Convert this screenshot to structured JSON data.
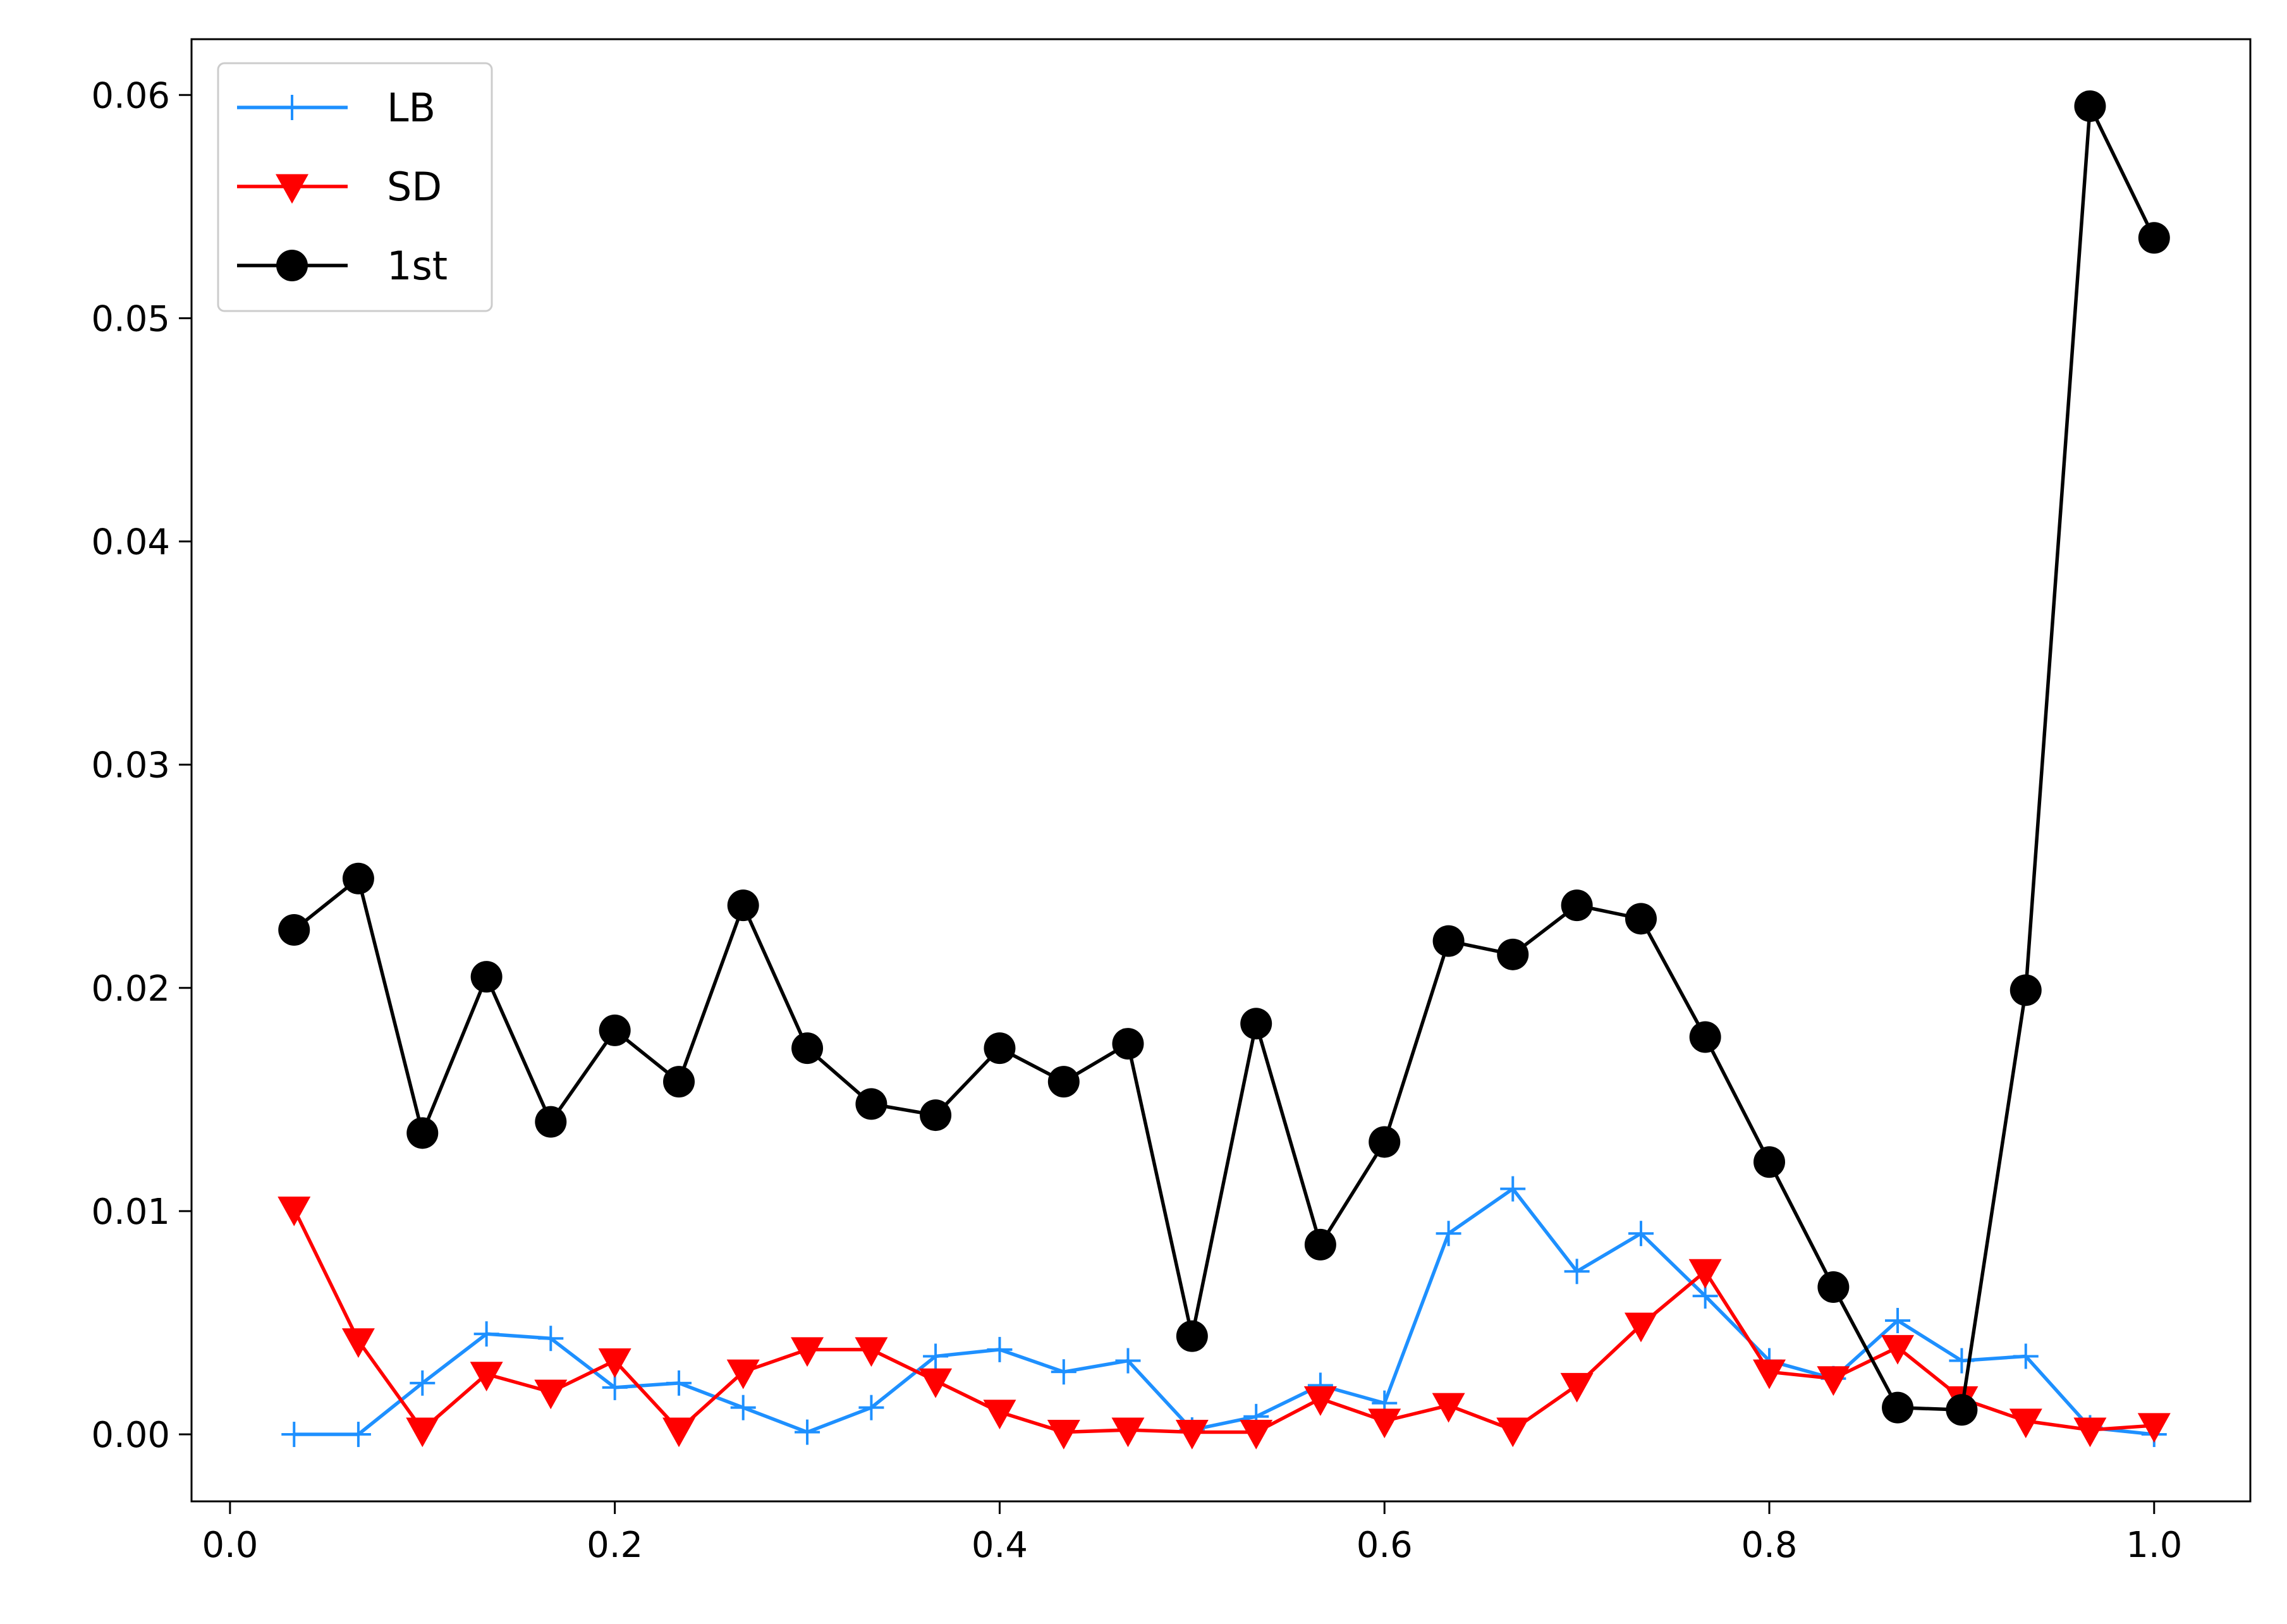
{
  "chart_data": {
    "type": "line",
    "title": "",
    "xlabel": "",
    "ylabel": "",
    "xlim": [
      -0.02,
      1.05
    ],
    "ylim": [
      -0.003,
      0.0625
    ],
    "grid": false,
    "legend_position": "top-left",
    "x": [
      0.0333,
      0.0667,
      0.1,
      0.1333,
      0.1667,
      0.2,
      0.2333,
      0.2667,
      0.3,
      0.3333,
      0.3667,
      0.4,
      0.4333,
      0.4667,
      0.5,
      0.5333,
      0.5667,
      0.6,
      0.6333,
      0.6667,
      0.7,
      0.7333,
      0.7667,
      0.8,
      0.8333,
      0.8667,
      0.9,
      0.9333,
      0.9667,
      1.0
    ],
    "xticks": [
      0.0,
      0.2,
      0.4,
      0.6,
      0.8,
      1.0
    ],
    "xtick_labels": [
      "0.0",
      "0.2",
      "0.4",
      "0.6",
      "0.8",
      "1.0"
    ],
    "yticks": [
      0.0,
      0.01,
      0.02,
      0.03,
      0.04,
      0.05,
      0.06
    ],
    "ytick_labels": [
      "0.00",
      "0.01",
      "0.02",
      "0.03",
      "0.04",
      "0.05",
      "0.06"
    ],
    "series": [
      {
        "name": "LB",
        "color": "#1e90ff",
        "marker": "plus",
        "values": [
          0.0,
          0.0,
          0.0023,
          0.0045,
          0.0043,
          0.0021,
          0.0023,
          0.0012,
          0.0001,
          0.0012,
          0.0035,
          0.0038,
          0.0028,
          0.0033,
          0.0002,
          0.0008,
          0.0022,
          0.0014,
          0.009,
          0.011,
          0.0073,
          0.009,
          0.0062,
          0.0033,
          0.0025,
          0.0051,
          0.0033,
          0.0035,
          0.0003,
          0.0
        ]
      },
      {
        "name": "SD",
        "color": "#ff0000",
        "marker": "triangle-down",
        "values": [
          0.0101,
          0.0042,
          0.0002,
          0.0027,
          0.0019,
          0.0033,
          0.0002,
          0.0028,
          0.0038,
          0.0038,
          0.0024,
          0.001,
          0.0001,
          0.0002,
          0.0001,
          0.0001,
          0.0016,
          0.0006,
          0.0013,
          0.0002,
          0.0022,
          0.0049,
          0.0073,
          0.0028,
          0.0025,
          0.0039,
          0.0016,
          0.0006,
          0.0002,
          0.0004
        ]
      },
      {
        "name": "1st",
        "color": "#000000",
        "marker": "circle",
        "values": [
          0.0226,
          0.0249,
          0.0135,
          0.0205,
          0.014,
          0.0181,
          0.0158,
          0.0237,
          0.0173,
          0.0148,
          0.0143,
          0.0173,
          0.0158,
          0.0175,
          0.0044,
          0.0184,
          0.0085,
          0.0131,
          0.0221,
          0.0215,
          0.0237,
          0.0231,
          0.0178,
          0.0122,
          0.0066,
          0.0012,
          0.0011,
          0.0199,
          0.0595,
          0.0536
        ]
      }
    ]
  }
}
